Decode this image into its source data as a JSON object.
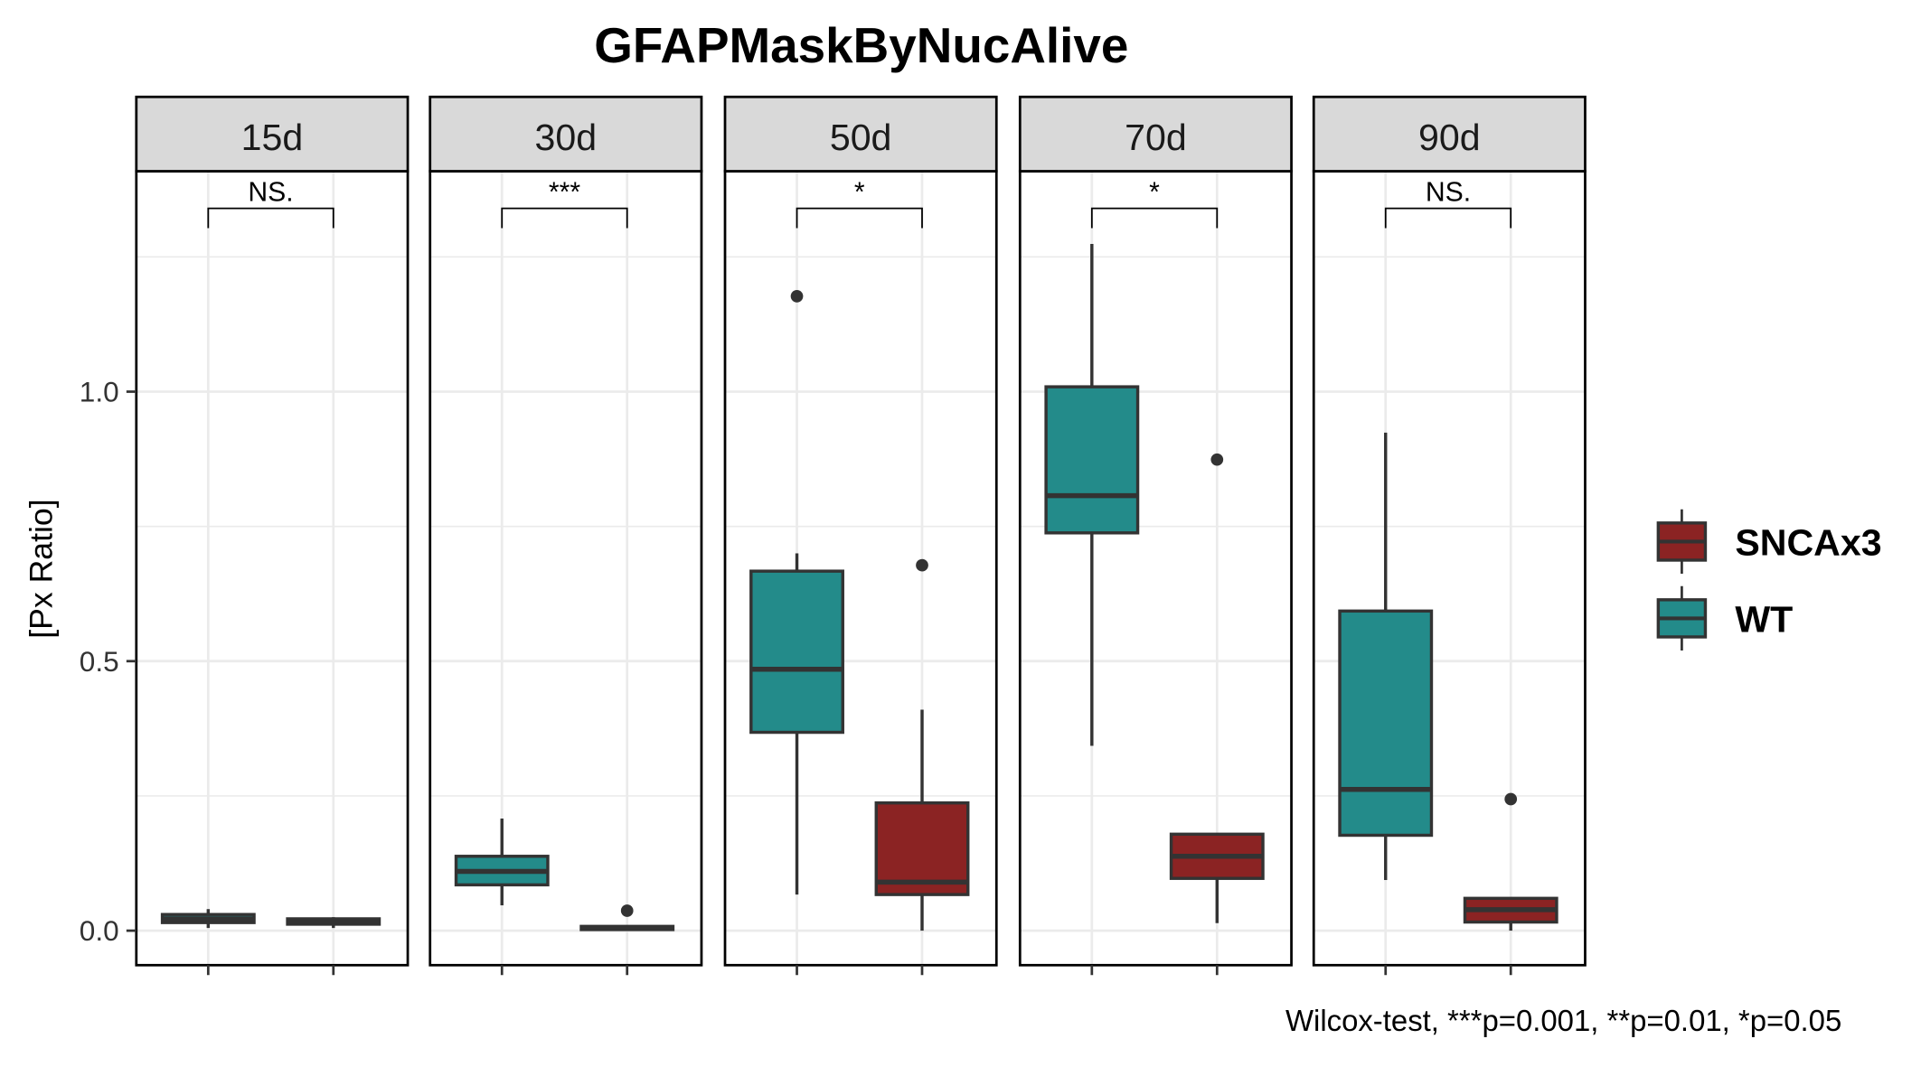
{
  "chart_data": {
    "type": "boxplot",
    "title": "GFAPMaskByNucAlive",
    "ylabel": "[Px Ratio]",
    "xlabel": "",
    "ylim": [
      -0.064,
      1.409
    ],
    "yticks": [
      0.0,
      0.5,
      1.0
    ],
    "ytick_labels": [
      "0.0",
      "0.5",
      "1.0"
    ],
    "grid": true,
    "legend": {
      "position": "right",
      "entries": [
        {
          "name": "SNCAx3",
          "color": "#8B2323"
        },
        {
          "name": "WT",
          "color": "#238B8A"
        }
      ]
    },
    "colors": {
      "WT": "#238B8A",
      "SNCAx3": "#8B2323",
      "outline": "#333333",
      "strip": "#D9D9D9",
      "grid": "#EBEBEB"
    },
    "note": "Wilcox-test, ***p=0.001, **p=0.01, *p=0.05",
    "panels": [
      {
        "label": "15d",
        "significance": "NS.",
        "groups": [
          {
            "name": "WT",
            "low": 0.005,
            "q1": 0.015,
            "median": 0.022,
            "q3": 0.03,
            "high": 0.04,
            "outliers": []
          },
          {
            "name": "SNCAx3",
            "low": 0.005,
            "q1": 0.012,
            "median": 0.017,
            "q3": 0.022,
            "high": 0.025,
            "outliers": []
          }
        ]
      },
      {
        "label": "30d",
        "significance": "***",
        "groups": [
          {
            "name": "WT",
            "low": 0.047,
            "q1": 0.085,
            "median": 0.11,
            "q3": 0.138,
            "high": 0.208,
            "outliers": []
          },
          {
            "name": "SNCAx3",
            "low": 0.0,
            "q1": 0.002,
            "median": 0.005,
            "q3": 0.008,
            "high": 0.01,
            "outliers": [
              0.037
            ]
          }
        ]
      },
      {
        "label": "50d",
        "significance": "*",
        "groups": [
          {
            "name": "WT",
            "low": 0.067,
            "q1": 0.368,
            "median": 0.485,
            "q3": 0.667,
            "high": 0.7,
            "outliers": [
              1.177
            ]
          },
          {
            "name": "SNCAx3",
            "low": 0.0,
            "q1": 0.067,
            "median": 0.09,
            "q3": 0.237,
            "high": 0.41,
            "outliers": [
              0.678
            ]
          }
        ]
      },
      {
        "label": "70d",
        "significance": "*",
        "groups": [
          {
            "name": "WT",
            "low": 0.343,
            "q1": 0.738,
            "median": 0.807,
            "q3": 1.009,
            "high": 1.274,
            "outliers": []
          },
          {
            "name": "SNCAx3",
            "low": 0.014,
            "q1": 0.097,
            "median": 0.138,
            "q3": 0.179,
            "high": 0.179,
            "outliers": [
              0.874
            ]
          }
        ]
      },
      {
        "label": "90d",
        "significance": "NS.",
        "groups": [
          {
            "name": "WT",
            "low": 0.094,
            "q1": 0.177,
            "median": 0.262,
            "q3": 0.593,
            "high": 0.924,
            "outliers": []
          },
          {
            "name": "SNCAx3",
            "low": 0.0,
            "q1": 0.016,
            "median": 0.039,
            "q3": 0.06,
            "high": 0.06,
            "outliers": [
              0.244
            ]
          }
        ]
      }
    ]
  }
}
